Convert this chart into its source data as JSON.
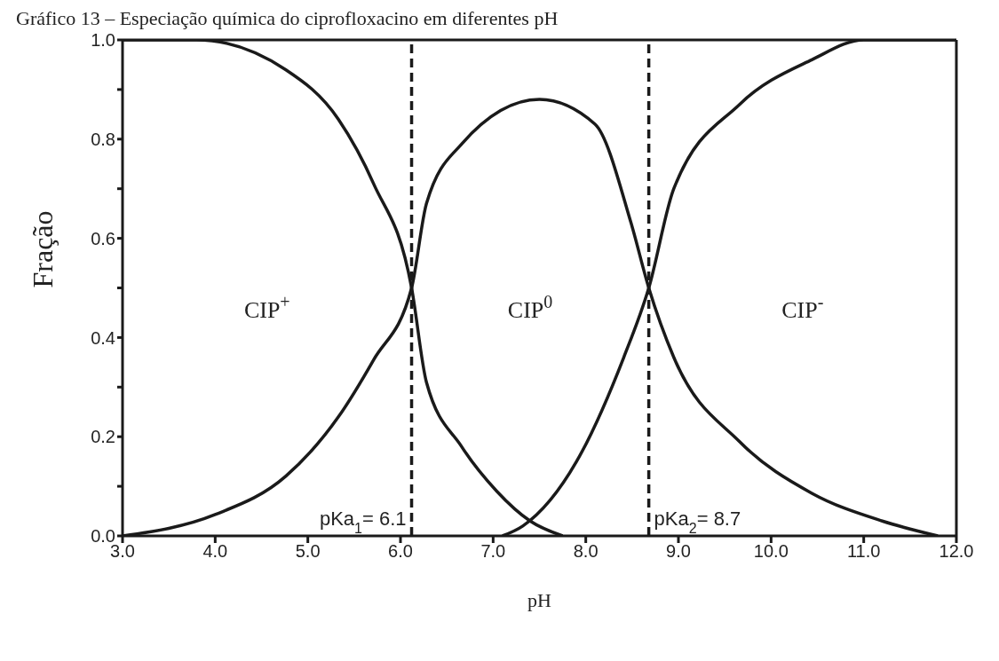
{
  "chart_data": {
    "type": "line",
    "title": "Gráfico 13 – Especiação química do ciprofloxacino em diferentes pH",
    "xlabel": "pH",
    "ylabel": "Fração",
    "xlim": [
      3,
      12
    ],
    "ylim": [
      0,
      1
    ],
    "xticks": [
      {
        "value": 3,
        "label": "3.0"
      },
      {
        "value": 4,
        "label": "4.0"
      },
      {
        "value": 5,
        "label": "5.0"
      },
      {
        "value": 6,
        "label": "6.0"
      },
      {
        "value": 7,
        "label": "7.0"
      },
      {
        "value": 8,
        "label": "8.0"
      },
      {
        "value": 9,
        "label": "9.0"
      },
      {
        "value": 10,
        "label": "10.0"
      },
      {
        "value": 11,
        "label": "11.0"
      },
      {
        "value": 12,
        "label": "12.0"
      }
    ],
    "yticks": [
      {
        "value": 0,
        "label": "0.0"
      },
      {
        "value": 0.1,
        "label": null
      },
      {
        "value": 0.2,
        "label": "0.2"
      },
      {
        "value": 0.3,
        "label": null
      },
      {
        "value": 0.4,
        "label": "0.4"
      },
      {
        "value": 0.5,
        "label": null
      },
      {
        "value": 0.6,
        "label": "0.6"
      },
      {
        "value": 0.7,
        "label": null
      },
      {
        "value": 0.8,
        "label": "0.8"
      },
      {
        "value": 0.9,
        "label": null
      },
      {
        "value": 1,
        "label": "1.0"
      }
    ],
    "legend": false,
    "marker": "none",
    "line_style": "solid",
    "series": [
      {
        "color": "#1a1a1a",
        "x": [
          3,
          3.8,
          4.76,
          5.33,
          5.71,
          6.12,
          6.28,
          6.66,
          7.04,
          7.4,
          7.75
        ],
        "values": [
          1,
          1,
          0.94,
          0.84,
          0.71,
          0.5,
          0.31,
          0.18,
          0.09,
          0.03,
          0
        ]
      },
      {
        "color": "#1a1a1a",
        "x": [
          3,
          4,
          4.76,
          5.33,
          5.71,
          6.12,
          6.28,
          6.66,
          7.5,
          8.1,
          8.49,
          8.68,
          8.95,
          9.66,
          10.44,
          11.2,
          11.8
        ],
        "values": [
          0,
          0.043,
          0.12,
          0.24,
          0.355,
          0.5,
          0.67,
          0.79,
          0.88,
          0.83,
          0.63,
          0.5,
          0.36,
          0.19,
          0.086,
          0.03,
          0
        ]
      },
      {
        "color": "#1a1a1a",
        "x": [
          7.1,
          7.32,
          7.9,
          8.41,
          8.68,
          8.95,
          9.66,
          10.44,
          11,
          12
        ],
        "values": [
          0,
          0.02,
          0.15,
          0.36,
          0.5,
          0.7,
          0.87,
          0.96,
          1,
          1
        ]
      }
    ],
    "ref_lines": [
      {
        "axis": "x",
        "value": 6.12,
        "label": "pKa$_{1}$= 6.1",
        "color": "#1a1a1a",
        "line_style": "dashed"
      },
      {
        "axis": "x",
        "value": 8.68,
        "label": "pKa$_{2}$= 8.7",
        "color": "#1a1a1a",
        "line_style": "dashed"
      }
    ],
    "annotations": [
      "CIP$^{+}$",
      "CIP$^{0}$",
      "CIP$^{-}$"
    ]
  }
}
